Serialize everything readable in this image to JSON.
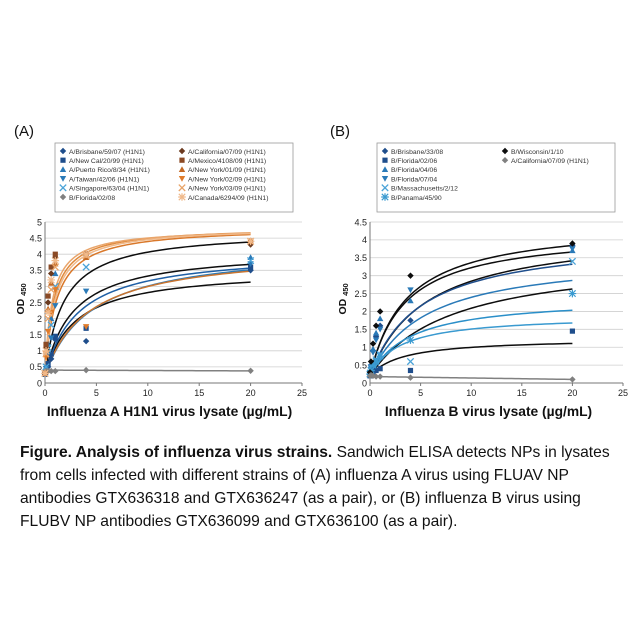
{
  "chart_data": [
    {
      "panel_label": "(A)",
      "type": "scatter",
      "xlabel": "Influenza A H1N1 virus lysate (µg/mL)",
      "ylabel": "OD 450",
      "ylabel_main": "OD",
      "ylabel_sub": "450",
      "xlim": [
        0,
        25
      ],
      "ylim": [
        0,
        5
      ],
      "xticks": [
        "0",
        "5",
        "10",
        "15",
        "20",
        "25"
      ],
      "yticks": [
        "0",
        "0.5",
        "1",
        "1.5",
        "2",
        "2.5",
        "3",
        "3.5",
        "4",
        "4.5",
        "5"
      ],
      "grid": "horizontal",
      "legend_position": "top",
      "x": [
        0,
        0.1,
        0.3,
        0.6,
        1,
        4,
        20
      ],
      "series": [
        {
          "name": "A/Brisbane/59/07 (H1N1)",
          "color": "#1f4e8c",
          "marker": "diamond",
          "values": [
            0.27,
            0.35,
            0.5,
            0.75,
            1.35,
            1.3,
            3.5
          ]
        },
        {
          "name": "A/New Cal/20/99 (H1N1)",
          "color": "#1f4e8c",
          "marker": "square",
          "values": [
            0.27,
            0.35,
            0.6,
            0.9,
            1.45,
            1.7,
            3.6
          ]
        },
        {
          "name": "A/Puerto Rico/8/34 (H1N1)",
          "color": "#2a7ab8",
          "marker": "triangle-up",
          "values": [
            0.3,
            0.5,
            1.2,
            2.0,
            3.4,
            3.9,
            3.9
          ]
        },
        {
          "name": "A/Taiwan/42/06 (H1N1)",
          "color": "#2a7ab8",
          "marker": "triangle-down",
          "values": [
            0.3,
            0.45,
            0.9,
            1.4,
            2.4,
            2.85,
            3.7
          ]
        },
        {
          "name": "A/Singapore/63/04 (H1N1)",
          "color": "#4aa3d8",
          "marker": "x",
          "values": [
            0.3,
            0.5,
            1.1,
            1.8,
            3.0,
            3.6,
            3.8
          ]
        },
        {
          "name": "B/Florida/02/08",
          "color": "#808080",
          "marker": "diamond",
          "values": [
            0.35,
            0.37,
            0.37,
            0.37,
            0.37,
            0.4,
            0.38
          ]
        },
        {
          "name": "A/California/07/09 (H1N1)",
          "color": "#6b3a1f",
          "marker": "diamond",
          "values": [
            0.3,
            1.1,
            2.5,
            3.4,
            3.9,
            4.0,
            4.3
          ]
        },
        {
          "name": "A/Mexico/4108/09 (H1N1)",
          "color": "#8b4a25",
          "marker": "square",
          "values": [
            0.3,
            1.2,
            2.7,
            3.6,
            4.0,
            4.0,
            4.4
          ]
        },
        {
          "name": "A/New York/01/09 (H1N1)",
          "color": "#c56a25",
          "marker": "triangle-up",
          "values": [
            0.3,
            1.0,
            2.3,
            3.1,
            3.7,
            3.9,
            4.4
          ]
        },
        {
          "name": "A/New York/02/09 (H1N1)",
          "color": "#e07b2a",
          "marker": "triangle-down",
          "values": [
            0.3,
            0.8,
            1.6,
            2.2,
            2.9,
            1.75,
            4.4
          ]
        },
        {
          "name": "A/New York/03/09 (H1N1)",
          "color": "#e8a468",
          "marker": "x",
          "values": [
            0.3,
            0.9,
            2.0,
            2.9,
            3.6,
            3.95,
            4.4
          ]
        },
        {
          "name": "A/Canada/6294/09 (H1N1)",
          "color": "#f0b98a",
          "marker": "star",
          "values": [
            0.3,
            1.0,
            2.2,
            3.2,
            3.8,
            4.0,
            4.4
          ]
        }
      ],
      "fits": [
        {
          "color": "#0d0d0d",
          "vmax": 3.3,
          "k": 2.9,
          "base": 0.25
        },
        {
          "color": "#0d0d0d",
          "vmax": 3.9,
          "k": 2.7,
          "base": 0.25
        },
        {
          "color": "#0d0d0d",
          "vmax": 4.5,
          "k": 1.8,
          "base": 0.25
        },
        {
          "color": "#1f5fa5",
          "vmax": 3.85,
          "k": 3.2,
          "base": 0.25
        },
        {
          "color": "#2a7ab8",
          "vmax": 4.0,
          "k": 4.5,
          "base": 0.25
        },
        {
          "color": "#c9742f",
          "vmax": 3.9,
          "k": 4.2,
          "base": 0.25
        },
        {
          "color": "#d9782a",
          "vmax": 4.6,
          "k": 1.1,
          "base": 0.25
        },
        {
          "color": "#e08a3c",
          "vmax": 4.6,
          "k": 0.85,
          "base": 0.25
        },
        {
          "color": "#e9a56b",
          "vmax": 4.55,
          "k": 0.7,
          "base": 0.25
        },
        {
          "color": "#f0b98a",
          "vmax": 4.6,
          "k": 0.95,
          "base": 0.25
        },
        {
          "color": "#808080",
          "vmax": 0.0,
          "k": 1.0,
          "base": 0.4,
          "slope": -0.0012
        }
      ]
    },
    {
      "panel_label": "(B)",
      "type": "scatter",
      "xlabel": "Influenza B virus lysate (µg/mL)",
      "ylabel": "OD 450",
      "ylabel_main": "OD",
      "ylabel_sub": "450",
      "xlim": [
        0,
        25
      ],
      "ylim": [
        0,
        4.5
      ],
      "xticks": [
        "0",
        "5",
        "10",
        "15",
        "20",
        "25"
      ],
      "yticks": [
        "0",
        "0.5",
        "1",
        "1.5",
        "2",
        "2.5",
        "3",
        "3.5",
        "4",
        "4.5"
      ],
      "grid": "horizontal",
      "legend_position": "top",
      "x": [
        0,
        0.1,
        0.3,
        0.6,
        1,
        4,
        20
      ],
      "series": [
        {
          "name": "B/Brisbane/33/08",
          "color": "#1f4e8c",
          "marker": "diamond",
          "values": [
            0.3,
            0.5,
            0.9,
            1.3,
            1.6,
            1.75,
            3.85
          ]
        },
        {
          "name": "B/Florida/02/06",
          "color": "#1f4e8c",
          "marker": "square",
          "values": [
            0.2,
            0.25,
            0.3,
            0.35,
            0.4,
            0.35,
            1.45
          ]
        },
        {
          "name": "B/Florida/04/06",
          "color": "#2a7ab8",
          "marker": "triangle-up",
          "values": [
            0.3,
            0.5,
            0.95,
            1.4,
            1.8,
            2.3,
            3.7
          ]
        },
        {
          "name": "B/Florida/07/04",
          "color": "#2a7ab8",
          "marker": "triangle-down",
          "values": [
            0.3,
            0.45,
            0.85,
            1.2,
            1.5,
            2.6,
            3.75
          ]
        },
        {
          "name": "B/Massachusetts/2/12",
          "color": "#4aa3d8",
          "marker": "x",
          "values": [
            0.25,
            0.35,
            0.55,
            0.65,
            0.8,
            0.6,
            3.4
          ]
        },
        {
          "name": "B/Panama/45/90",
          "color": "#3a9ad0",
          "marker": "star",
          "values": [
            0.25,
            0.35,
            0.5,
            0.6,
            0.75,
            1.2,
            2.5
          ]
        },
        {
          "name": "B/Wisconsin/1/10",
          "color": "#0d0d0d",
          "marker": "diamond",
          "values": [
            0.3,
            0.6,
            1.1,
            1.6,
            2.0,
            3.0,
            3.9
          ]
        },
        {
          "name": "A/California/07/09 (H1N1)",
          "color": "#808080",
          "marker": "diamond",
          "values": [
            0.2,
            0.22,
            0.2,
            0.18,
            0.18,
            0.15,
            0.1
          ]
        }
      ],
      "fits": [
        {
          "color": "#0d0d0d",
          "vmax": 4.3,
          "k": 3.6,
          "base": 0.2
        },
        {
          "color": "#0d0d0d",
          "vmax": 4.05,
          "k": 3.4,
          "base": 0.2
        },
        {
          "color": "#0d0d0d",
          "vmax": 4.1,
          "k": 5.5,
          "base": 0.2
        },
        {
          "color": "#1f4e8c",
          "vmax": 3.9,
          "k": 5.0,
          "base": 0.2
        },
        {
          "color": "#2a7ab8",
          "vmax": 3.4,
          "k": 5.5,
          "base": 0.2
        },
        {
          "color": "#0d0d0d",
          "vmax": 3.4,
          "k": 8.0,
          "base": 0.2
        },
        {
          "color": "#2a8fc9",
          "vmax": 2.2,
          "k": 4.0,
          "base": 0.2
        },
        {
          "color": "#3a9ad0",
          "vmax": 1.7,
          "k": 3.0,
          "base": 0.2
        },
        {
          "color": "#0d0d0d",
          "vmax": 1.05,
          "k": 3.2,
          "base": 0.2
        },
        {
          "color": "#808080",
          "vmax": 0.0,
          "k": 1.0,
          "base": 0.18,
          "slope": -0.004
        }
      ]
    }
  ],
  "caption": {
    "bold": "Figure. Analysis of influenza virus strains.",
    "text": " Sandwich ELISA detects NPs in lysates from cells infected with different strains of (A) influenza A virus using FLUAV NP antibodies GTX636318 and GTX636247 (as a pair), or (B) influenza B virus using FLUBV NP antibodies GTX636099 and GTX636100 (as a pair)."
  }
}
